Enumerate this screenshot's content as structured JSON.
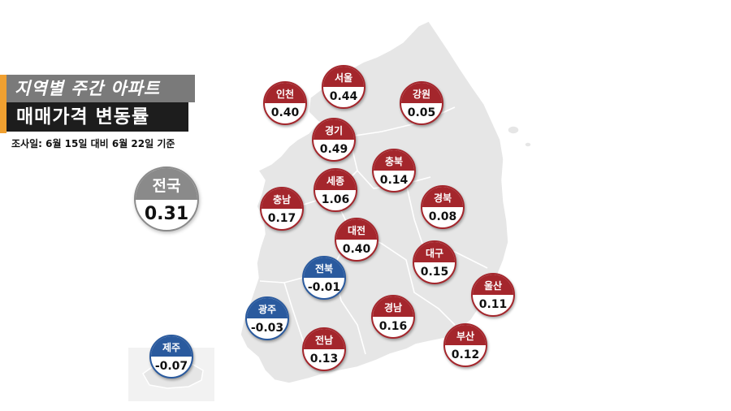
{
  "title": {
    "line1": "지역별 주간 아파트",
    "line2": "매매가격 변동률",
    "survey": "조사일: 6월 15일 대비 6월 22일 기준"
  },
  "national": {
    "label": "전국",
    "value": "0.31"
  },
  "colors": {
    "increase": "#a4262c",
    "decrease": "#2a5a9e",
    "national": "#8a8a8a",
    "land": "#e6e6e6"
  },
  "regions": [
    {
      "id": "incheon",
      "name": "인천",
      "value": "0.40"
    },
    {
      "id": "seoul",
      "name": "서울",
      "value": "0.44"
    },
    {
      "id": "gangwon",
      "name": "강원",
      "value": "0.05"
    },
    {
      "id": "gyeonggi",
      "name": "경기",
      "value": "0.49"
    },
    {
      "id": "chungbuk",
      "name": "충북",
      "value": "0.14"
    },
    {
      "id": "sejong",
      "name": "세종",
      "value": "1.06"
    },
    {
      "id": "chungnam",
      "name": "충남",
      "value": "0.17"
    },
    {
      "id": "gyeongbuk",
      "name": "경북",
      "value": "0.08"
    },
    {
      "id": "daejeon",
      "name": "대전",
      "value": "0.40"
    },
    {
      "id": "daegu",
      "name": "대구",
      "value": "0.15"
    },
    {
      "id": "jeonbuk",
      "name": "전북",
      "value": "-0.01"
    },
    {
      "id": "ulsan",
      "name": "울산",
      "value": "0.11"
    },
    {
      "id": "gwangju",
      "name": "광주",
      "value": "-0.03"
    },
    {
      "id": "gyeongnam",
      "name": "경남",
      "value": "0.16"
    },
    {
      "id": "busan",
      "name": "부산",
      "value": "0.12"
    },
    {
      "id": "jeonnam",
      "name": "전남",
      "value": "0.13"
    },
    {
      "id": "jeju",
      "name": "제주",
      "value": "-0.07"
    }
  ]
}
